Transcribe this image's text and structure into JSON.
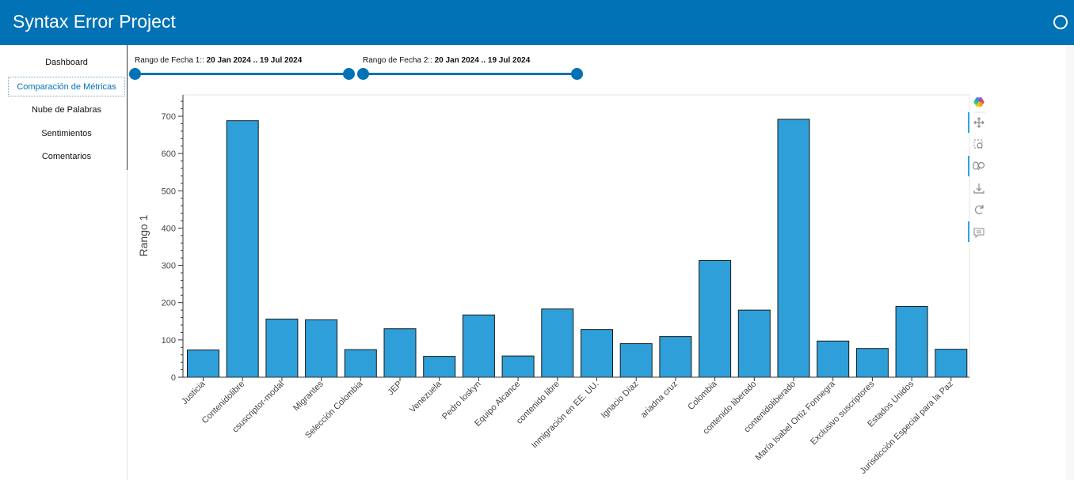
{
  "header": {
    "title": "Syntax Error Project",
    "status_icon": "circle-busy-indicator-icon"
  },
  "sidebar": {
    "items": [
      {
        "label": "Dashboard",
        "active": false
      },
      {
        "label": "Comparación de Métricas",
        "active": true
      },
      {
        "label": "Nube de Palabras",
        "active": false
      },
      {
        "label": "Sentimientos",
        "active": false
      },
      {
        "label": "Comentarios",
        "active": false
      }
    ]
  },
  "sliders": [
    {
      "label": "Rango de Fecha 1::",
      "value": "20 Jan 2024 .. 19 Jul 2024"
    },
    {
      "label": "Rango de Fecha 2::",
      "value": "20 Jan 2024 .. 19 Jul 2024"
    }
  ],
  "toolbar": {
    "tools": [
      "bokeh-logo-icon",
      "pan-icon",
      "box-zoom-icon",
      "wheel-zoom-icon",
      "save-icon",
      "reset-icon",
      "hover-icon"
    ]
  },
  "colors": {
    "header": "#0072b5",
    "bar_fill": "#2e9fd9",
    "bar_stroke": "#1a1a1a",
    "toolbar_active": "#26aae1"
  },
  "chart_data": {
    "type": "bar",
    "categories": [
      "Justicia",
      "Contenidolibre",
      "csuscriptor-modal",
      "Migrantes",
      "Selección Colombia",
      "JEP",
      "Venezuela",
      "Pedro loskyn",
      "Equipo Alcance",
      "contenido libre",
      "Inmigración en EE. UU.",
      "Ignacio Díaz",
      "ariadna cruz",
      "Colombia",
      "contenido liberado",
      "contenidoliberado",
      "María Isabel Ortiz Fonnegra",
      "Exclusivo suscriptores",
      "Estados Unidos",
      "Jurisdicción Especial para la Paz"
    ],
    "values": [
      73,
      688,
      156,
      154,
      74,
      130,
      56,
      167,
      57,
      183,
      128,
      90,
      109,
      313,
      180,
      692,
      97,
      77,
      190,
      75
    ],
    "ylabel": "Rango 1",
    "xlabel": "",
    "ylim": [
      0,
      750
    ],
    "yticks": [
      0,
      100,
      200,
      300,
      400,
      500,
      600,
      700
    ],
    "grid": false,
    "legend": "none"
  }
}
